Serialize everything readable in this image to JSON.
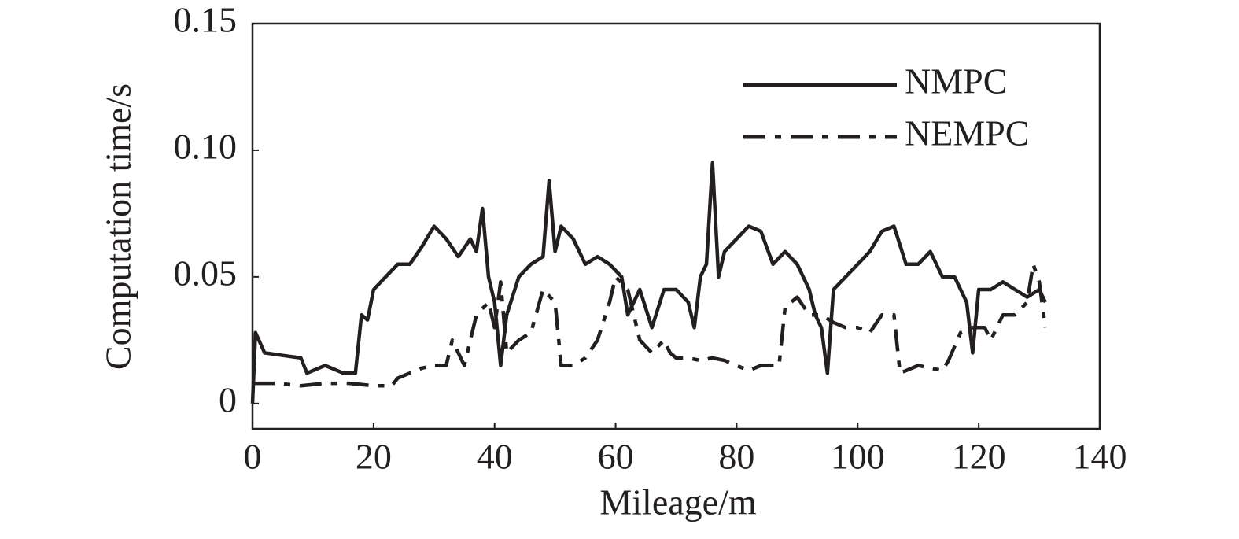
{
  "chart_data": {
    "type": "line",
    "xlabel": "Mileage/m",
    "ylabel": "Computation time/s",
    "xlim": [
      0,
      140
    ],
    "xticks": [
      0,
      20,
      40,
      60,
      80,
      100,
      120,
      140
    ],
    "ylim": [
      -0.01,
      0.15
    ],
    "yticks": [
      0,
      0.05,
      {
        "value": 0.1,
        "label": "0.10"
      },
      0.15
    ],
    "legend": "upper right",
    "series": [
      {
        "name": "NMPC",
        "color": "#231f20",
        "style": "solid",
        "x": [
          0,
          0.5,
          2,
          5,
          8,
          9,
          12,
          15,
          17,
          18,
          19,
          20,
          22,
          24,
          26,
          28,
          30,
          32,
          34,
          36,
          37,
          38,
          39,
          40,
          41,
          42,
          44,
          46,
          48,
          49,
          50,
          51,
          53,
          55,
          57,
          59,
          61,
          62,
          64,
          66,
          68,
          70,
          72,
          73,
          74,
          75,
          76,
          77,
          78,
          80,
          82,
          84,
          86,
          88,
          90,
          92,
          93,
          94,
          95,
          96,
          98,
          100,
          102,
          104,
          106,
          108,
          110,
          112,
          114,
          116,
          118,
          119,
          120,
          122,
          124,
          126,
          128,
          130,
          131
        ],
        "values": [
          0.0,
          0.028,
          0.02,
          0.019,
          0.018,
          0.012,
          0.015,
          0.012,
          0.012,
          0.035,
          0.033,
          0.045,
          0.05,
          0.055,
          0.055,
          0.062,
          0.07,
          0.065,
          0.058,
          0.065,
          0.06,
          0.077,
          0.05,
          0.04,
          0.015,
          0.035,
          0.05,
          0.055,
          0.058,
          0.088,
          0.06,
          0.07,
          0.065,
          0.055,
          0.058,
          0.055,
          0.05,
          0.035,
          0.045,
          0.03,
          0.045,
          0.045,
          0.04,
          0.03,
          0.05,
          0.055,
          0.095,
          0.05,
          0.06,
          0.065,
          0.07,
          0.068,
          0.055,
          0.06,
          0.055,
          0.045,
          0.035,
          0.03,
          0.012,
          0.045,
          0.05,
          0.055,
          0.06,
          0.068,
          0.07,
          0.055,
          0.055,
          0.06,
          0.05,
          0.05,
          0.04,
          0.02,
          0.045,
          0.045,
          0.048,
          0.045,
          0.042,
          0.045,
          0.04
        ]
      },
      {
        "name": "NEMPC",
        "color": "#231f20",
        "style": "dashdot",
        "x": [
          0,
          4,
          8,
          12,
          16,
          20,
          23,
          24,
          26,
          28,
          30,
          32,
          33,
          35,
          36,
          37,
          39,
          40,
          41,
          42,
          44,
          46,
          48,
          50,
          51,
          53,
          55,
          57,
          59,
          60,
          62,
          64,
          66,
          68,
          69,
          70,
          72,
          74,
          76,
          78,
          80,
          82,
          84,
          87,
          88,
          90,
          92,
          94,
          96,
          98,
          100,
          102,
          104,
          106,
          107,
          110,
          114,
          115,
          117,
          119,
          121,
          122,
          124,
          126,
          128,
          129,
          130,
          131
        ],
        "values": [
          0.008,
          0.008,
          0.007,
          0.008,
          0.008,
          0.007,
          0.007,
          0.01,
          0.012,
          0.014,
          0.015,
          0.015,
          0.025,
          0.015,
          0.025,
          0.035,
          0.04,
          0.03,
          0.048,
          0.02,
          0.025,
          0.028,
          0.045,
          0.04,
          0.015,
          0.015,
          0.018,
          0.025,
          0.04,
          0.05,
          0.045,
          0.025,
          0.02,
          0.025,
          0.02,
          0.018,
          0.018,
          0.017,
          0.018,
          0.017,
          0.015,
          0.013,
          0.015,
          0.015,
          0.038,
          0.042,
          0.035,
          0.035,
          0.032,
          0.03,
          0.03,
          0.028,
          0.035,
          0.035,
          0.012,
          0.015,
          0.013,
          0.017,
          0.028,
          0.03,
          0.03,
          0.025,
          0.035,
          0.035,
          0.04,
          0.055,
          0.048,
          0.03
        ]
      }
    ]
  }
}
